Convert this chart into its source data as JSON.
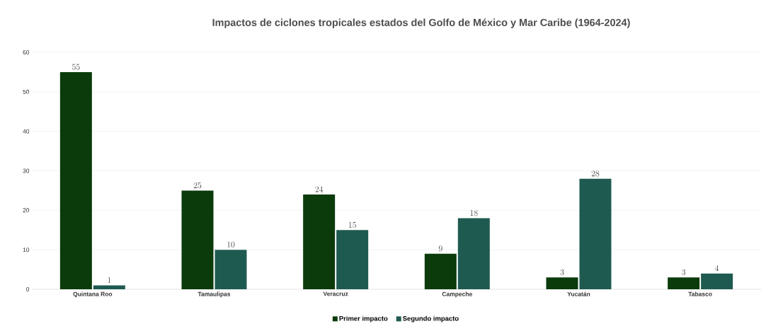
{
  "chart_data": {
    "type": "bar",
    "title": "Impactos de ciclones tropicales estados del Golfo de México y Mar Caribe (1964-2024)",
    "categories": [
      "Quintana Roo",
      "Tamaulipas",
      "Veracruz",
      "Campeche",
      "Yucatán",
      "Tabasco"
    ],
    "series": [
      {
        "name": "Primer impacto",
        "color": "#0b3b0b",
        "values": [
          55,
          25,
          24,
          9,
          3,
          3
        ]
      },
      {
        "name": "Segundo impacto",
        "color": "#1f5a50",
        "values": [
          1,
          10,
          15,
          18,
          28,
          4
        ]
      }
    ],
    "ylim": [
      0,
      60
    ],
    "yticks": [
      0,
      10,
      20,
      30,
      40,
      50,
      60
    ],
    "grid": "y",
    "legend": "bottom",
    "data_labels": true
  }
}
